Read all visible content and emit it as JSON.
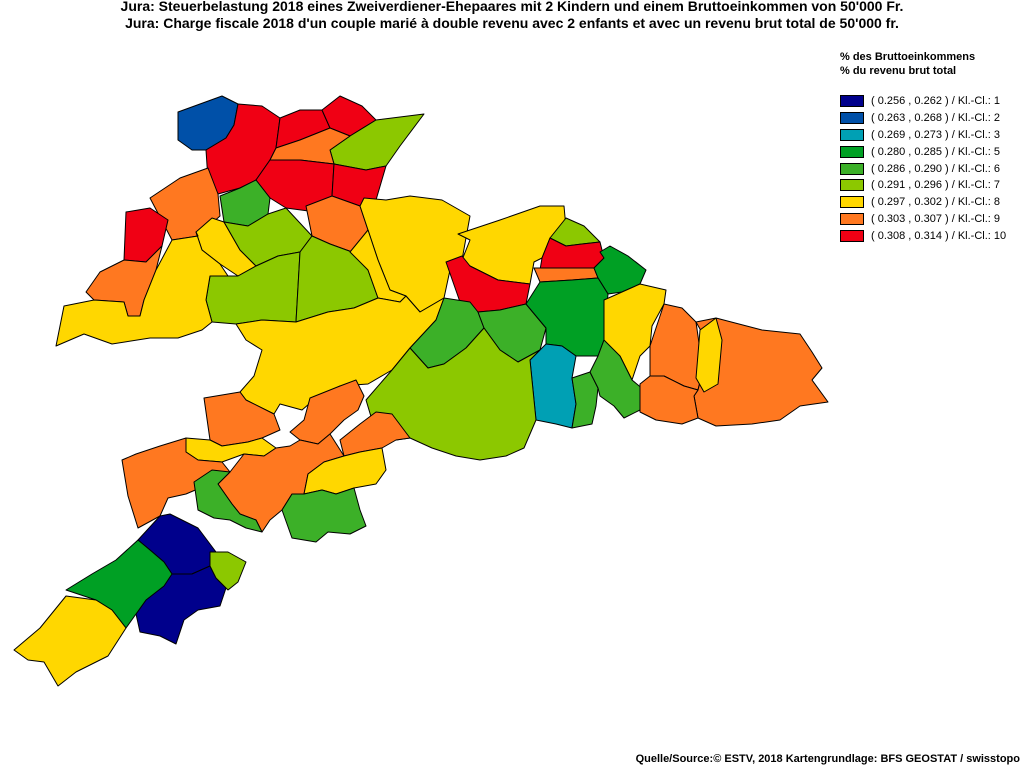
{
  "title_de": "Jura: Steuerbelastung 2018 eines Zweiverdiener-Ehepaares mit 2 Kindern und einem Bruttoeinkommen von 50'000 Fr.",
  "title_fr": "Jura: Charge fiscale 2018 d'un couple marié à double revenu avec 2 enfants et avec un revenu brut total de 50'000 fr.",
  "legend": {
    "heading_de": "% des Bruttoeinkommens",
    "heading_fr": "% du revenu brut total",
    "classes": [
      {
        "label": "( 0.256 , 0.262 ) / Kl.-Cl.: 1",
        "color": "#00008c"
      },
      {
        "label": "( 0.263 , 0.268 ) / Kl.-Cl.: 2",
        "color": "#0050a8"
      },
      {
        "label": "( 0.269 , 0.273 ) / Kl.-Cl.: 3",
        "color": "#00a0b4"
      },
      {
        "label": "( 0.280 , 0.285 ) / Kl.-Cl.: 5",
        "color": "#00a024"
      },
      {
        "label": "( 0.286 , 0.290 ) / Kl.-Cl.: 6",
        "color": "#3cb028"
      },
      {
        "label": "( 0.291 , 0.296 ) / Kl.-Cl.: 7",
        "color": "#8cc800"
      },
      {
        "label": "( 0.297 , 0.302 ) / Kl.-Cl.: 8",
        "color": "#ffd700"
      },
      {
        "label": "( 0.303 , 0.307 ) / Kl.-Cl.: 9",
        "color": "#ff7820"
      },
      {
        "label": "( 0.308 , 0.314 ) / Kl.-Cl.: 10",
        "color": "#f00014"
      }
    ]
  },
  "source": "Quelle/Source:© ESTV, 2018 Kartengrundlage: BFS GEOSTAT / swisstopo",
  "regions": [
    {
      "id": "r01",
      "cls": 2
    },
    {
      "id": "r02",
      "cls": 10
    },
    {
      "id": "r03",
      "cls": 10
    },
    {
      "id": "r04",
      "cls": 10
    },
    {
      "id": "r05",
      "cls": 7
    },
    {
      "id": "r06",
      "cls": 9
    },
    {
      "id": "r07",
      "cls": 10
    },
    {
      "id": "r08",
      "cls": 10
    },
    {
      "id": "r09",
      "cls": 9
    },
    {
      "id": "r10",
      "cls": 6
    },
    {
      "id": "r11",
      "cls": 10
    },
    {
      "id": "r12",
      "cls": 9
    },
    {
      "id": "r13",
      "cls": 8
    },
    {
      "id": "r14",
      "cls": 7
    },
    {
      "id": "r15",
      "cls": 7
    },
    {
      "id": "r16",
      "cls": 7
    },
    {
      "id": "r17",
      "cls": 9
    },
    {
      "id": "r18",
      "cls": 8
    },
    {
      "id": "r19",
      "cls": 8
    },
    {
      "id": "r20",
      "cls": 8
    },
    {
      "id": "r21",
      "cls": 8
    },
    {
      "id": "r22",
      "cls": 8
    },
    {
      "id": "r23",
      "cls": 10
    },
    {
      "id": "r24",
      "cls": 7
    },
    {
      "id": "r25",
      "cls": 10
    },
    {
      "id": "r26",
      "cls": 9
    },
    {
      "id": "r27",
      "cls": 5
    },
    {
      "id": "r28",
      "cls": 6
    },
    {
      "id": "r29",
      "cls": 6
    },
    {
      "id": "r30",
      "cls": 5
    },
    {
      "id": "r31",
      "cls": 8
    },
    {
      "id": "r32",
      "cls": 3
    },
    {
      "id": "r33",
      "cls": 6
    },
    {
      "id": "r34",
      "cls": 6
    },
    {
      "id": "r35",
      "cls": 7
    },
    {
      "id": "r36",
      "cls": 9
    },
    {
      "id": "r37",
      "cls": 9
    },
    {
      "id": "r38",
      "cls": 8
    },
    {
      "id": "r39",
      "cls": 9
    },
    {
      "id": "r40",
      "cls": 9
    },
    {
      "id": "r41",
      "cls": 9
    },
    {
      "id": "r42",
      "cls": 9
    },
    {
      "id": "r43",
      "cls": 8
    },
    {
      "id": "r44",
      "cls": 9
    },
    {
      "id": "r45",
      "cls": 9
    },
    {
      "id": "r46",
      "cls": 6
    },
    {
      "id": "r47",
      "cls": 8
    },
    {
      "id": "r48",
      "cls": 6
    },
    {
      "id": "r49",
      "cls": 1
    },
    {
      "id": "r50",
      "cls": 1
    },
    {
      "id": "r51",
      "cls": 5
    },
    {
      "id": "r52",
      "cls": 7
    },
    {
      "id": "r53",
      "cls": 8
    }
  ]
}
